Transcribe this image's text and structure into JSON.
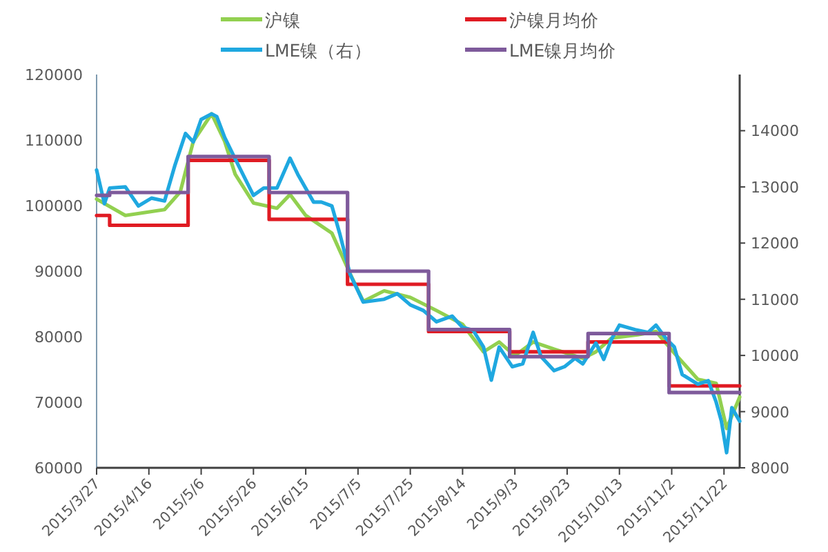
{
  "chart_data": {
    "type": "line",
    "xlim": [
      "2015-03-27",
      "2015-11-28"
    ],
    "xticks": [
      {
        "value": "2015-03-27",
        "label": "2015/3/27"
      },
      {
        "value": "2015-04-16",
        "label": "2015/4/16"
      },
      {
        "value": "2015-05-06",
        "label": "2015/5/6"
      },
      {
        "value": "2015-05-26",
        "label": "2015/5/26"
      },
      {
        "value": "2015-06-15",
        "label": "2015/6/15"
      },
      {
        "value": "2015-07-05",
        "label": "2015/7/5"
      },
      {
        "value": "2015-07-25",
        "label": "2015/7/25"
      },
      {
        "value": "2015-08-14",
        "label": "2015/8/14"
      },
      {
        "value": "2015-09-03",
        "label": "2015/9/3"
      },
      {
        "value": "2015-09-23",
        "label": "2015/9/23"
      },
      {
        "value": "2015-10-13",
        "label": "2015/10/13"
      },
      {
        "value": "2015-11-02",
        "label": "2015/11/2"
      },
      {
        "value": "2015-11-22",
        "label": "2015/11/22"
      }
    ],
    "ylim": [
      60000,
      120000
    ],
    "yticks": [
      60000,
      70000,
      80000,
      90000,
      100000,
      110000,
      120000
    ],
    "y2lim": [
      8000,
      15000
    ],
    "y2ticks": [
      8000,
      9000,
      10000,
      11000,
      12000,
      13000,
      14000
    ],
    "legend": "top",
    "series": [
      {
        "name": "沪镍",
        "color": "#92d050",
        "x": [
          "2015-03-27",
          "2015-04-07",
          "2015-04-22",
          "2015-04-28",
          "2015-05-03",
          "2015-05-10",
          "2015-05-15",
          "2015-05-19",
          "2015-05-26",
          "2015-06-04",
          "2015-06-09",
          "2015-06-15",
          "2015-06-25",
          "2015-07-02",
          "2015-07-07",
          "2015-07-15",
          "2015-07-25",
          "2015-08-04",
          "2015-08-14",
          "2015-08-22",
          "2015-08-28",
          "2015-09-03",
          "2015-09-10",
          "2015-09-18",
          "2015-09-29",
          "2015-10-04",
          "2015-10-10",
          "2015-10-20",
          "2015-10-27",
          "2015-11-03",
          "2015-11-12",
          "2015-11-19",
          "2015-11-23",
          "2015-11-28"
        ],
        "values": [
          101000,
          98500,
          99400,
          102100,
          109800,
          114000,
          109800,
          104800,
          100400,
          99600,
          101700,
          98500,
          95800,
          89600,
          85400,
          87000,
          86000,
          84000,
          81900,
          77700,
          79200,
          77100,
          79200,
          78100,
          76700,
          77700,
          79800,
          80300,
          80800,
          77500,
          73500,
          72900,
          66000,
          70800
        ]
      },
      {
        "name": "沪镍月均价",
        "type": "step",
        "color": "#e01b23",
        "x": [
          "2015-03-27",
          "2015-04-01",
          "2015-05-01",
          "2015-06-01",
          "2015-07-01",
          "2015-08-01",
          "2015-09-01",
          "2015-10-01",
          "2015-11-01",
          "2015-11-28"
        ],
        "values": [
          98500,
          97000,
          106900,
          97900,
          88000,
          80800,
          77700,
          79200,
          72500,
          72500
        ]
      },
      {
        "name": "LME镍（右）",
        "axis": "y2",
        "color": "#1fa8e0",
        "x": [
          "2015-03-27",
          "2015-03-30",
          "2015-04-01",
          "2015-04-07",
          "2015-04-12",
          "2015-04-17",
          "2015-04-22",
          "2015-04-26",
          "2015-04-30",
          "2015-05-03",
          "2015-05-06",
          "2015-05-10",
          "2015-05-12",
          "2015-05-15",
          "2015-05-19",
          "2015-05-22",
          "2015-05-26",
          "2015-05-30",
          "2015-06-04",
          "2015-06-09",
          "2015-06-12",
          "2015-06-18",
          "2015-06-21",
          "2015-06-25",
          "2015-06-28",
          "2015-07-02",
          "2015-07-07",
          "2015-07-15",
          "2015-07-20",
          "2015-07-25",
          "2015-07-30",
          "2015-08-04",
          "2015-08-10",
          "2015-08-14",
          "2015-08-18",
          "2015-08-22",
          "2015-08-25",
          "2015-08-28",
          "2015-09-02",
          "2015-09-06",
          "2015-09-10",
          "2015-09-13",
          "2015-09-18",
          "2015-09-22",
          "2015-09-26",
          "2015-09-29",
          "2015-10-04",
          "2015-10-07",
          "2015-10-10",
          "2015-10-13",
          "2015-10-19",
          "2015-10-24",
          "2015-10-27",
          "2015-10-31",
          "2015-11-03",
          "2015-11-06",
          "2015-11-12",
          "2015-11-16",
          "2015-11-19",
          "2015-11-21",
          "2015-11-23",
          "2015-11-25",
          "2015-11-28"
        ],
        "values": [
          13300,
          12700,
          12980,
          13000,
          12660,
          12800,
          12750,
          13390,
          13950,
          13800,
          14200,
          14300,
          14250,
          13880,
          13500,
          13220,
          12850,
          12980,
          12980,
          13510,
          13220,
          12730,
          12730,
          12660,
          12170,
          11440,
          10950,
          11000,
          11100,
          10900,
          10800,
          10600,
          10700,
          10500,
          10450,
          10150,
          9560,
          10150,
          9800,
          9850,
          10410,
          9980,
          9730,
          9800,
          9950,
          9850,
          10220,
          9930,
          10290,
          10540,
          10460,
          10410,
          10540,
          10290,
          10150,
          9660,
          9490,
          9550,
          9170,
          8830,
          8270,
          9070,
          8830
        ]
      },
      {
        "name": "LME镍月均价",
        "type": "step",
        "axis": "y2",
        "color": "#7e5a9b",
        "x": [
          "2015-03-27",
          "2015-04-01",
          "2015-05-01",
          "2015-06-01",
          "2015-07-01",
          "2015-08-01",
          "2015-09-01",
          "2015-10-01",
          "2015-11-01",
          "2015-11-28"
        ],
        "values": [
          12850,
          12900,
          13540,
          12900,
          11500,
          10460,
          9980,
          10390,
          9340,
          9340
        ]
      }
    ]
  }
}
